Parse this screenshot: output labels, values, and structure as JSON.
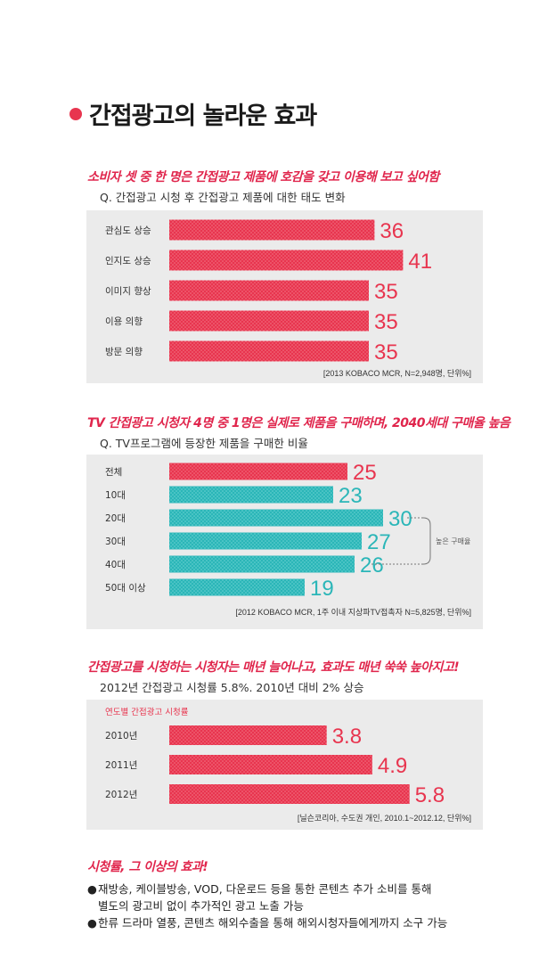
{
  "title": "간접광고의 놀라운 효과",
  "sections": [
    {
      "headline": "소비자 셋 중 한 명은 간접광고 제품에 호감을 갖고 이용해 보고 싶어함",
      "subtitle": "Q. 간접광고 시청 후 간접광고 제품에 대한 태도 변화",
      "source": "[2013 KOBACO MCR, N=2,948명, 단위%]"
    },
    {
      "headline": "TV 간접광고 시청자 4명 중 1명은 실제로 제품을 구매하며, 2040세대 구매율 높음",
      "subtitle": "Q. TV프로그램에 등장한 제품을 구매한 비율",
      "source": "[2012 KOBACO MCR, 1주 이내 지상파TV접촉자 N=5,825명, 단위%]",
      "bracket_label": "높은 구매율"
    },
    {
      "headline": "간접광고를 시청하는 시청자는 매년 늘어나고, 효과도 매년 쑥쑥 높아지고!",
      "subtitle": "2012년 간접광고 시청률 5.8%. 2010년 대비 2% 상승",
      "source": "[닐슨코리아, 수도권 개인, 2010.1~2012.12, 단위%]"
    }
  ],
  "colors": {
    "red": "#e8354f",
    "red_light": "#f37685",
    "teal": "#2bb6b8",
    "teal_light": "#6dd3d3",
    "panel_bg": "#ebebeb"
  },
  "chart_data": [
    {
      "type": "bar",
      "orientation": "horizontal",
      "categories": [
        "관심도 상승",
        "인지도 상승",
        "이미지 향상",
        "이용 의향",
        "방문 의향"
      ],
      "values": [
        36,
        41,
        35,
        35,
        35
      ],
      "value_labels": [
        "36",
        "41",
        "35",
        "35",
        "35"
      ],
      "colors": [
        "red",
        "red",
        "red",
        "red",
        "red"
      ],
      "xlim": [
        0,
        50
      ],
      "grid": false,
      "legend": false
    },
    {
      "type": "bar",
      "orientation": "horizontal",
      "categories": [
        "전체",
        "10대",
        "20대",
        "30대",
        "40대",
        "50대 이상"
      ],
      "values": [
        25,
        23,
        30,
        27,
        26,
        19
      ],
      "value_labels": [
        "25",
        "23",
        "30",
        "27",
        "26",
        "19"
      ],
      "colors": [
        "red",
        "teal",
        "teal",
        "teal",
        "teal",
        "teal"
      ],
      "xlim": [
        0,
        50
      ],
      "grid": false,
      "legend": false
    },
    {
      "type": "bar",
      "orientation": "horizontal",
      "title": "연도별 간접광고 시청률",
      "categories": [
        "2010년",
        "2011년",
        "2012년"
      ],
      "values": [
        3.8,
        4.9,
        5.8
      ],
      "value_labels": [
        "3.8",
        "4.9",
        "5.8"
      ],
      "colors": [
        "red",
        "red",
        "red"
      ],
      "xlim": [
        0,
        8
      ],
      "grid": false,
      "legend": false
    }
  ],
  "closing": {
    "headline": "시청률, 그 이상의 효과!",
    "bullets": [
      {
        "marker": "●",
        "line1": "재방송, 케이블방송, VOD, 다운로드 등을 통한 콘텐츠 추가 소비를 통해",
        "line2": "별도의 광고비 없이 추가적인 광고 노출 가능"
      },
      {
        "marker": "●",
        "line1": "한류 드라마 열풍, 콘텐츠 해외수출을 통해 해외시청자들에게까지 소구 가능",
        "line2": ""
      }
    ]
  }
}
